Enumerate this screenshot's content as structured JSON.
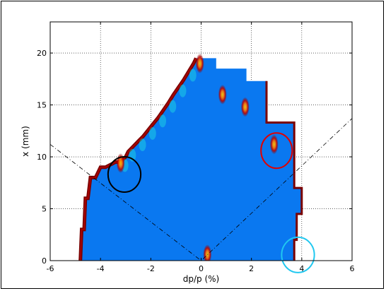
{
  "chart_data": {
    "type": "heatmap",
    "title": "",
    "xlabel": "dp/p (%)",
    "ylabel": "x (mm)",
    "xlim": [
      -6,
      6
    ],
    "ylim": [
      0,
      23
    ],
    "xticks": [
      -6,
      -4,
      -2,
      0,
      2,
      4,
      6
    ],
    "yticks": [
      0,
      5,
      10,
      15,
      20
    ],
    "grid": true,
    "colors": {
      "fill": "#0a78f0",
      "edge_hot": "#7a0000",
      "edge_warm": "#c00000",
      "highlight": "#ffd000",
      "glow": "#22e0e0"
    },
    "region_outline": {
      "dp_p": [
        -4.8,
        -4.75,
        -4.65,
        -4.6,
        -4.5,
        -4.4,
        -4.2,
        -4.0,
        -3.8,
        -3.4,
        -3.2,
        -3.0,
        -2.9,
        -2.7,
        -2.5,
        -2.3,
        -2.1,
        -1.9,
        -1.7,
        -1.5,
        -1.3,
        -1.1,
        -0.9,
        -0.7,
        -0.5,
        -0.3,
        -0.2,
        0.0,
        0.6,
        0.6,
        1.8,
        1.8,
        2.6,
        2.6,
        3.7,
        3.7,
        4.0,
        4.0,
        3.8,
        3.8,
        3.7,
        3.7
      ],
      "x": [
        0.0,
        3.0,
        3.0,
        6.0,
        6.0,
        8.0,
        8.0,
        9.0,
        9.0,
        9.5,
        9.5,
        10.0,
        10.5,
        11.0,
        11.5,
        12.0,
        12.6,
        13.2,
        13.8,
        14.5,
        15.2,
        16.0,
        16.7,
        17.4,
        18.2,
        19.0,
        19.5,
        19.5,
        19.5,
        18.5,
        18.5,
        17.3,
        17.3,
        13.3,
        13.3,
        7.0,
        7.0,
        4.5,
        4.5,
        2.0,
        2.0,
        0.0
      ]
    },
    "boundary_lines": [
      {
        "style": "dash-dot",
        "x": [
          -6,
          0,
          6
        ],
        "y": [
          11.2,
          0,
          13.7
        ]
      }
    ],
    "hotspots": [
      {
        "x": -3.2,
        "y": 9.4
      },
      {
        "x": 2.9,
        "y": 11.2
      },
      {
        "x": -0.05,
        "y": 19.0
      },
      {
        "x": 0.85,
        "y": 16.0
      },
      {
        "x": 1.75,
        "y": 14.8
      },
      {
        "x": 0.25,
        "y": 0.6
      }
    ],
    "annotations": [
      {
        "shape": "circle",
        "color": "#000000",
        "x": -3.05,
        "y": 8.3,
        "rx": 0.65,
        "ry": 1.7
      },
      {
        "shape": "circle",
        "color": "#e00000",
        "x": 3.0,
        "y": 10.6,
        "rx": 0.62,
        "ry": 1.7
      },
      {
        "shape": "circle",
        "color": "#20c8f0",
        "x": 3.85,
        "y": 0.55,
        "rx": 0.65,
        "ry": 1.7
      }
    ]
  }
}
